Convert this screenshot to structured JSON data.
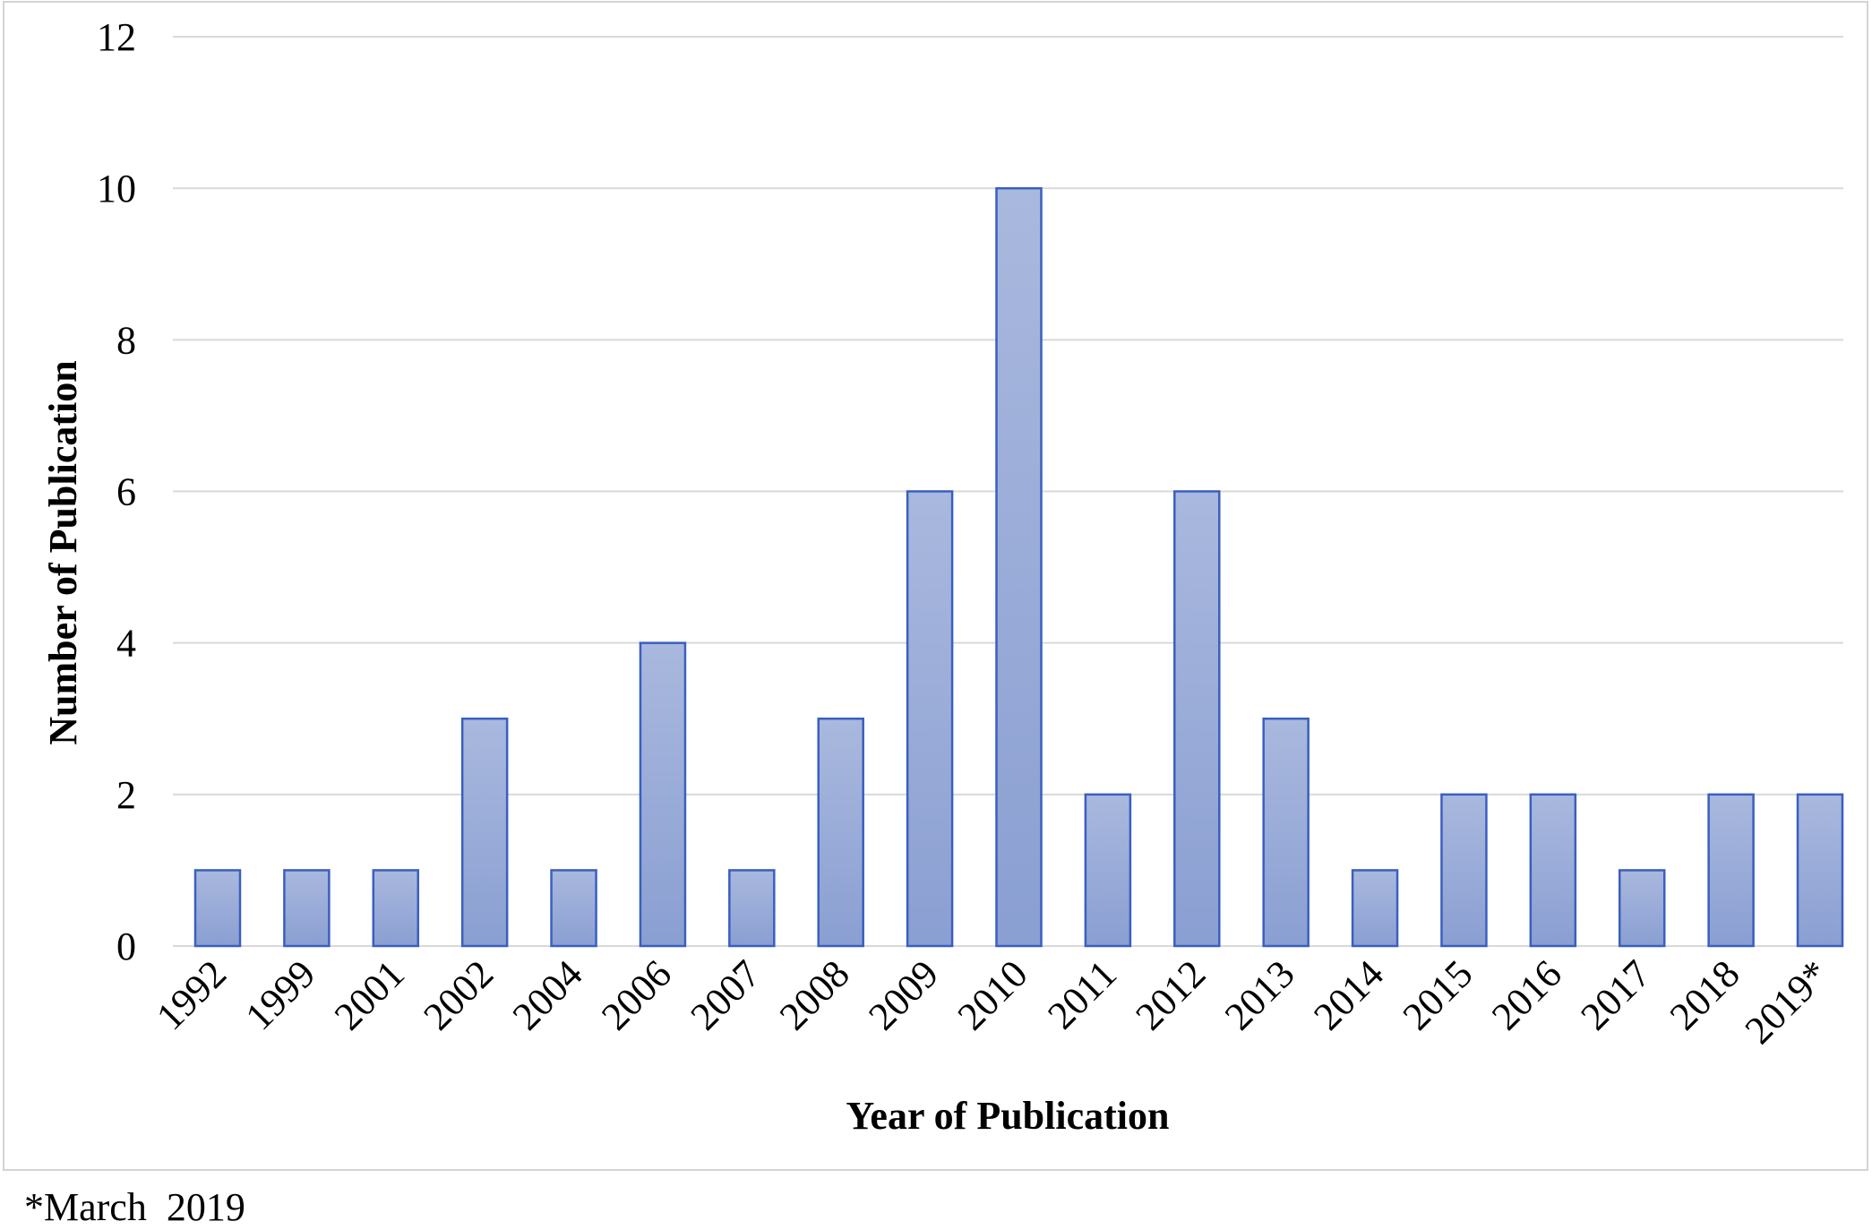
{
  "chart_data": {
    "type": "bar",
    "categories": [
      "1992",
      "1999",
      "2001",
      "2002",
      "2004",
      "2006",
      "2007",
      "2008",
      "2009",
      "2010",
      "2011",
      "2012",
      "2013",
      "2014",
      "2015",
      "2016",
      "2017",
      "2018",
      "2019*"
    ],
    "values": [
      1,
      1,
      1,
      3,
      1,
      4,
      1,
      3,
      6,
      10,
      2,
      6,
      3,
      1,
      2,
      2,
      1,
      2,
      2
    ],
    "xlabel": "Year of Publication",
    "ylabel": "Number of Publication",
    "ylim": [
      0,
      12
    ],
    "yticks": [
      0,
      2,
      4,
      6,
      8,
      10,
      12
    ],
    "grid": true,
    "legend": "none",
    "colors": {
      "bar_top": "#a9b8de",
      "bar_bottom": "#8a9fd2",
      "bar_edge": "#3a5fc0",
      "grid": "#d9d9d9",
      "frame": "#d4d4d4"
    }
  },
  "footnote": "*March  2019"
}
